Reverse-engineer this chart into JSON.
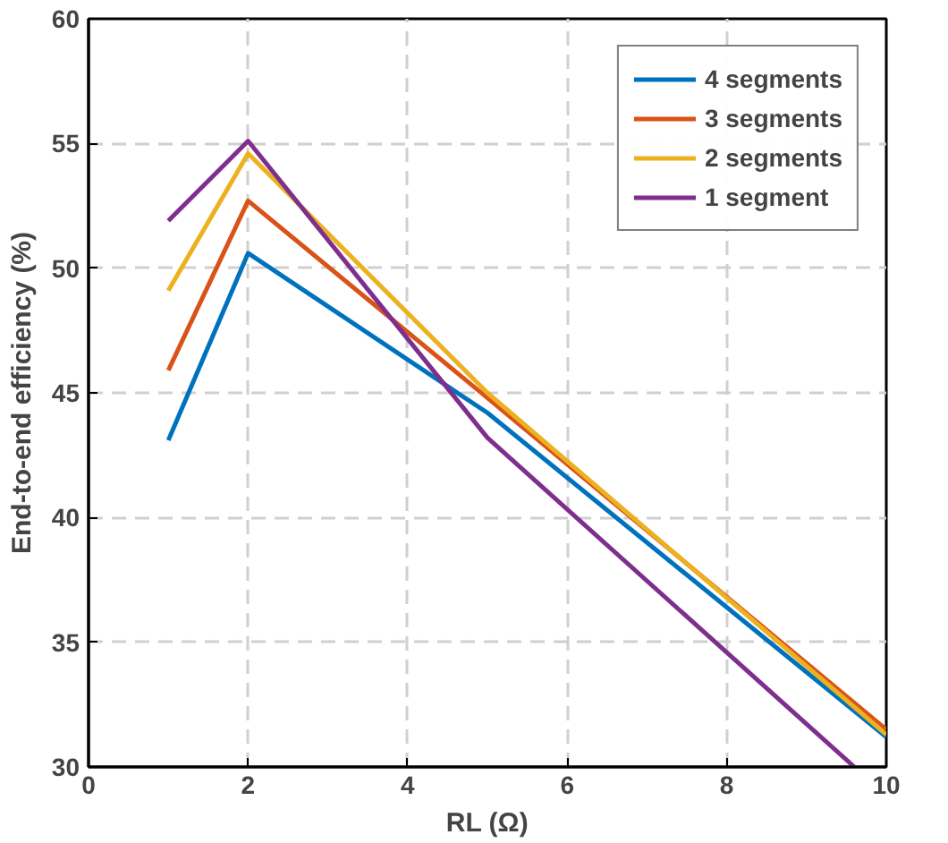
{
  "chart_data": {
    "type": "line",
    "xlabel": "RL (Ω)",
    "ylabel": "End-to-end efficiency (%)",
    "x": [
      1,
      2,
      5,
      10
    ],
    "series": [
      {
        "name": "4 segments",
        "color": "#0072bd",
        "values": [
          43.1,
          50.6,
          44.2,
          31.2
        ]
      },
      {
        "name": "3 segments",
        "color": "#d95319",
        "values": [
          45.9,
          52.7,
          44.8,
          31.5
        ]
      },
      {
        "name": "2 segments",
        "color": "#edb120",
        "values": [
          49.1,
          54.6,
          45.0,
          31.3
        ]
      },
      {
        "name": "1 segment",
        "color": "#7e2f8e",
        "x": [
          1,
          2,
          5,
          9.6
        ],
        "values": [
          51.9,
          55.1,
          43.2,
          30.0
        ]
      }
    ],
    "xlim": [
      0,
      10
    ],
    "xticks": [
      0,
      2,
      4,
      6,
      8,
      10
    ],
    "ylim": [
      30,
      60
    ],
    "yticks": [
      30,
      35,
      40,
      45,
      50,
      55,
      60
    ],
    "grid": true,
    "legend": "top right",
    "marker": "none",
    "line_style": "solid"
  }
}
